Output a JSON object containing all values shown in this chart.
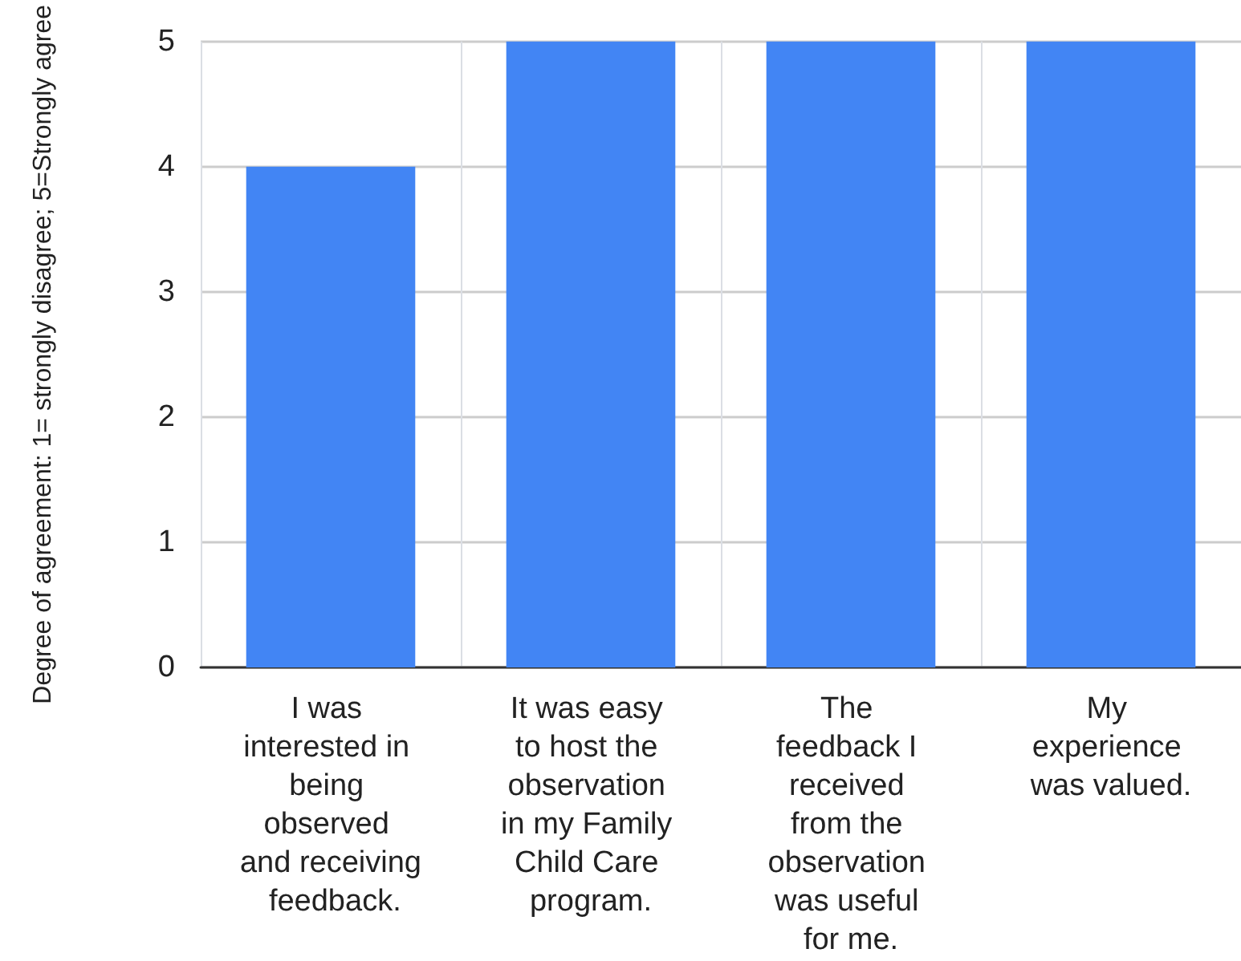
{
  "chart_data": {
    "type": "bar",
    "ylabel": "Degree of agreement: 1= strongly disagree; 5=Strongly agree",
    "categories": [
      "I was interested in being observed and receiving feedback.",
      "It was easy to host the observation in my Family Child Care program.",
      "The feedback I received from the observation was useful for me.",
      "My experience was valued."
    ],
    "values": [
      4,
      5,
      5,
      5
    ],
    "color": "#4285f4",
    "ylim": [
      0,
      5
    ],
    "yticks": [
      0,
      1,
      2,
      3,
      4,
      5
    ],
    "grid": true
  }
}
